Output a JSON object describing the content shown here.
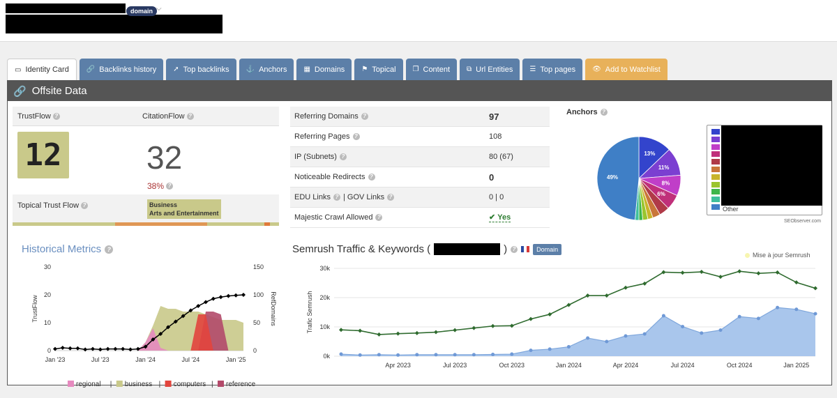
{
  "header": {
    "domain_badge": "domain",
    "chevron": "⌵"
  },
  "tabs": [
    {
      "label": "Identity Card",
      "icon": "id-card-icon",
      "glyph": "▭"
    },
    {
      "label": "Backlinks history",
      "icon": "link-icon",
      "glyph": "🔗"
    },
    {
      "label": "Top backlinks",
      "icon": "rocket-icon",
      "glyph": "➚"
    },
    {
      "label": "Anchors",
      "icon": "anchor-icon",
      "glyph": "⚓"
    },
    {
      "label": "Domains",
      "icon": "grid-icon",
      "glyph": "▦"
    },
    {
      "label": "Topical",
      "icon": "flag-icon",
      "glyph": "⚑"
    },
    {
      "label": "Content",
      "icon": "copy-icon",
      "glyph": "❐"
    },
    {
      "label": "Url Entities",
      "icon": "sitemap-icon",
      "glyph": "⧉"
    },
    {
      "label": "Top pages",
      "icon": "list-icon",
      "glyph": "☰"
    },
    {
      "label": "Add to Watchlist",
      "icon": "eye-icon",
      "glyph": "👁"
    }
  ],
  "panel": {
    "title": "Offsite Data"
  },
  "trust": {
    "trustflow_label": "TrustFlow",
    "citationflow_label": "CitationFlow",
    "trustflow_value": "12",
    "citationflow_value": "32",
    "ratio": "38%",
    "topical_label": "Topical Trust Flow",
    "topical_tags": [
      "Business",
      "Arts and Entertainment"
    ]
  },
  "stats": [
    {
      "label": "Referring Domains",
      "value": "97",
      "big": true
    },
    {
      "label": "Referring Pages",
      "value": "108",
      "big": false
    },
    {
      "label": "IP (Subnets)",
      "value": "80 (67)",
      "big": false
    },
    {
      "label": "Noticeable Redirects",
      "value": "0",
      "big": true
    },
    {
      "label": "EDU Links",
      "label2": "| GOV Links",
      "value": "0 | 0",
      "big": false
    },
    {
      "label": "Majestic Crawl Allowed",
      "value": "Yes",
      "big": false
    }
  ],
  "anchors": {
    "title": "Anchors",
    "other_label": "Other",
    "credit": "SEObserver.com",
    "slices": [
      {
        "label": "13%",
        "value": 13,
        "color": "#3344cc"
      },
      {
        "label": "11%",
        "value": 11,
        "color": "#7b3fd1"
      },
      {
        "label": "8%",
        "value": 8,
        "color": "#c03ec8"
      },
      {
        "label": "6%",
        "value": 6,
        "color": "#c0307a"
      },
      {
        "label": "",
        "value": 4,
        "color": "#b03a48"
      },
      {
        "label": "",
        "value": 3,
        "color": "#c9763a"
      },
      {
        "label": "",
        "value": 2,
        "color": "#c8b52a"
      },
      {
        "label": "",
        "value": 2,
        "color": "#9ac52e"
      },
      {
        "label": "",
        "value": 1.5,
        "color": "#3fb64a"
      },
      {
        "label": "",
        "value": 1.5,
        "color": "#3fbf9c"
      },
      {
        "label": "49%",
        "value": 49,
        "color": "#3f7fc6"
      }
    ]
  },
  "historical": {
    "title": "Historical Metrics",
    "y_left_label": "TrustFlow",
    "y_right_label": "RefDomains",
    "y_left_ticks": [
      "0",
      "10",
      "20",
      "30"
    ],
    "y_right_ticks": [
      "0",
      "50",
      "100",
      "150"
    ],
    "x_ticks": [
      "Jan '23",
      "Jul '23",
      "Jan '24",
      "Jul '24",
      "Jan '25"
    ],
    "legend": [
      {
        "label": "regional",
        "color": "#e68abf"
      },
      {
        "label": "business",
        "color": "#c9c98a"
      },
      {
        "label": "computers",
        "color": "#e2453d"
      },
      {
        "label": "reference",
        "color": "#b34a6a"
      }
    ],
    "legend_sep": "|"
  },
  "semrush": {
    "title_prefix": "Semrush Traffic & Keywords (",
    "title_suffix": ")",
    "domain_badge": "Domain",
    "update_label": "Mise à jour Semrush",
    "y_label": "Trafic Semrush",
    "y_ticks": [
      "0k",
      "10k",
      "20k",
      "30k"
    ],
    "x_ticks": [
      "Apr 2023",
      "Jul 2023",
      "Oct 2023",
      "Jan 2024",
      "Apr 2024",
      "Jul 2024",
      "Oct 2024",
      "Jan 2025"
    ]
  },
  "chart_data": [
    {
      "type": "line",
      "title": "Historical Metrics",
      "xlabel": "",
      "ylabel": "TrustFlow",
      "ylabel_right": "RefDomains",
      "ylim": [
        0,
        30
      ],
      "ylim_right": [
        0,
        150
      ],
      "x": [
        "Jan '23",
        "Feb '23",
        "Mar '23",
        "Apr '23",
        "May '23",
        "Jun '23",
        "Jul '23",
        "Aug '23",
        "Sep '23",
        "Oct '23",
        "Nov '23",
        "Dec '23",
        "Jan '24",
        "Feb '24",
        "Mar '24",
        "Apr '24",
        "May '24",
        "Jun '24",
        "Jul '24",
        "Aug '24",
        "Sep '24",
        "Oct '24",
        "Nov '24",
        "Dec '24",
        "Jan '25",
        "Feb '25"
      ],
      "series": [
        {
          "name": "RefDomains",
          "values": [
            3,
            5,
            4,
            4,
            2,
            3,
            2,
            3,
            3,
            3,
            2,
            3,
            7,
            20,
            30,
            42,
            52,
            62,
            72,
            80,
            87,
            93,
            96,
            98,
            99,
            100
          ]
        },
        {
          "name": "business (TrustFlow)",
          "values": [
            0,
            0,
            0,
            0,
            0,
            0,
            0,
            0,
            0,
            0,
            0,
            0,
            3,
            9,
            16,
            15,
            15,
            14,
            14,
            14,
            13,
            12,
            11,
            11,
            11,
            10
          ]
        },
        {
          "name": "regional (TrustFlow)",
          "values": [
            0,
            0,
            0,
            0,
            0,
            0,
            0,
            0,
            0,
            0,
            0,
            0,
            3,
            8,
            1,
            0,
            0,
            0,
            0,
            0,
            0,
            0,
            0,
            0,
            0,
            0
          ]
        },
        {
          "name": "computers (TrustFlow)",
          "values": [
            0,
            0,
            0,
            0,
            0,
            0,
            0,
            0,
            0,
            0,
            0,
            0,
            0,
            0,
            0,
            0,
            0,
            0,
            0,
            13,
            13,
            0,
            0,
            0,
            0,
            0
          ]
        },
        {
          "name": "reference (TrustFlow)",
          "values": [
            0,
            0,
            0,
            0,
            0,
            0,
            0,
            0,
            0,
            0,
            0,
            0,
            0,
            0,
            0,
            0,
            0,
            0,
            0,
            0,
            14,
            14,
            13,
            0,
            0,
            0
          ]
        }
      ],
      "legend": [
        "regional",
        "business",
        "computers",
        "reference"
      ]
    },
    {
      "type": "area",
      "title": "Semrush Traffic & Keywords",
      "xlabel": "",
      "ylabel": "Trafic Semrush",
      "ylim": [
        0,
        30000
      ],
      "x": [
        "Jan 2023",
        "Feb 2023",
        "Mar 2023",
        "Apr 2023",
        "May 2023",
        "Jun 2023",
        "Jul 2023",
        "Aug 2023",
        "Sep 2023",
        "Oct 2023",
        "Nov 2023",
        "Dec 2023",
        "Jan 2024",
        "Feb 2024",
        "Mar 2024",
        "Apr 2024",
        "May 2024",
        "Jun 2024",
        "Jul 2024",
        "Aug 2024",
        "Sep 2024",
        "Oct 2024",
        "Nov 2024",
        "Dec 2024",
        "Jan 2025",
        "Feb 2025"
      ],
      "series": [
        {
          "name": "Traffic",
          "values": [
            700,
            400,
            500,
            400,
            500,
            500,
            500,
            500,
            600,
            700,
            2000,
            2400,
            3200,
            6200,
            5000,
            6900,
            7600,
            13800,
            10100,
            7900,
            8900,
            13500,
            12900,
            16600,
            16000,
            14500
          ]
        },
        {
          "name": "Keywords",
          "values": [
            9000,
            8700,
            7400,
            7700,
            7900,
            8200,
            8900,
            9600,
            10300,
            10400,
            12700,
            14300,
            17500,
            20700,
            20700,
            23400,
            24800,
            28700,
            28500,
            28800,
            27100,
            29000,
            28300,
            28600,
            25200,
            23200
          ]
        }
      ]
    }
  ]
}
